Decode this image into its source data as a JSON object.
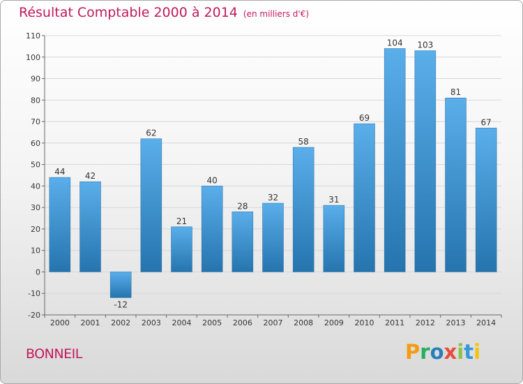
{
  "header": {
    "title": "Résultat Comptable 2000 à 2014",
    "subtitle": "(en milliers d'€)"
  },
  "commune": "BONNEIL",
  "logo": {
    "letters": [
      "P",
      "r",
      "o",
      "x",
      "i",
      "t",
      "i"
    ]
  },
  "colors": {
    "bar_top": "#5aaeea",
    "bar_bottom": "#2574ae",
    "title": "#c2185b",
    "grid": "#d6d6d6"
  },
  "chart_data": {
    "type": "bar",
    "categories": [
      "2000",
      "2001",
      "2002",
      "2003",
      "2004",
      "2005",
      "2006",
      "2007",
      "2008",
      "2009",
      "2010",
      "2011",
      "2012",
      "2013",
      "2014"
    ],
    "values": [
      44,
      42,
      -12,
      62,
      21,
      40,
      28,
      32,
      58,
      31,
      69,
      104,
      103,
      81,
      67
    ],
    "title": "Résultat Comptable 2000 à 2014",
    "subtitle": "(en milliers d'€)",
    "ylim": [
      -20,
      110
    ],
    "yticks": [
      -20,
      -10,
      0,
      10,
      20,
      30,
      40,
      50,
      60,
      70,
      80,
      90,
      100,
      110
    ],
    "grid": true
  }
}
